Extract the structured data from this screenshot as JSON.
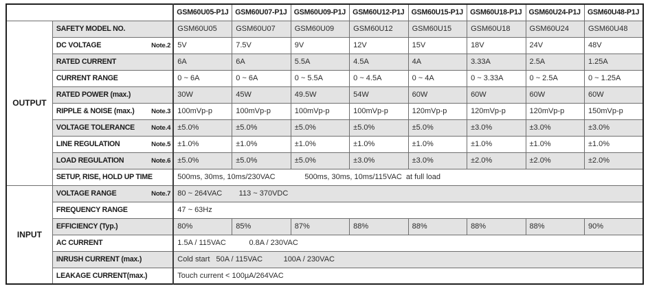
{
  "table": {
    "corner": "",
    "models": [
      "GSM60U05-P1J",
      "GSM60U07-P1J",
      "GSM60U09-P1J",
      "GSM60U12-P1J",
      "GSM60U15-P1J",
      "GSM60U18-P1J",
      "GSM60U24-P1J",
      "GSM60U48-P1J"
    ],
    "sections": [
      {
        "label": "OUTPUT",
        "rows": [
          {
            "label": "SAFETY MODEL NO.",
            "note": "",
            "values": [
              "GSM60U05",
              "GSM60U07",
              "GSM60U09",
              "GSM60U12",
              "GSM60U15",
              "GSM60U18",
              "GSM60U24",
              "GSM60U48"
            ]
          },
          {
            "label": "DC VOLTAGE",
            "note": "Note.2",
            "values": [
              "5V",
              "7.5V",
              "9V",
              "12V",
              "15V",
              "18V",
              "24V",
              "48V"
            ]
          },
          {
            "label": "RATED CURRENT",
            "note": "",
            "values": [
              "6A",
              "6A",
              "5.5A",
              "4.5A",
              "4A",
              "3.33A",
              "2.5A",
              "1.25A"
            ]
          },
          {
            "label": "CURRENT RANGE",
            "note": "",
            "values": [
              "0 ~ 6A",
              "0 ~ 6A",
              "0 ~ 5.5A",
              "0 ~ 4.5A",
              "0 ~ 4A",
              "0 ~ 3.33A",
              "0 ~ 2.5A",
              "0 ~ 1.25A"
            ]
          },
          {
            "label": "RATED POWER (max.)",
            "note": "",
            "values": [
              "30W",
              "45W",
              "49.5W",
              "54W",
              "60W",
              "60W",
              "60W",
              "60W"
            ]
          },
          {
            "label": "RIPPLE & NOISE (max.)",
            "note": "Note.3",
            "values": [
              "100mVp-p",
              "100mVp-p",
              "100mVp-p",
              "100mVp-p",
              "120mVp-p",
              "120mVp-p",
              "120mVp-p",
              "150mVp-p"
            ]
          },
          {
            "label": "VOLTAGE TOLERANCE",
            "note": "Note.4",
            "values": [
              "±5.0%",
              "±5.0%",
              "±5.0%",
              "±5.0%",
              "±5.0%",
              "±3.0%",
              "±3.0%",
              "±3.0%"
            ]
          },
          {
            "label": "LINE REGULATION",
            "note": "Note.5",
            "values": [
              "±1.0%",
              "±1.0%",
              "±1.0%",
              "±1.0%",
              "±1.0%",
              "±1.0%",
              "±1.0%",
              "±1.0%"
            ]
          },
          {
            "label": "LOAD REGULATION",
            "note": "Note.6",
            "values": [
              "±5.0%",
              "±5.0%",
              "±5.0%",
              "±3.0%",
              "±3.0%",
              "±2.0%",
              "±2.0%",
              "±2.0%"
            ]
          },
          {
            "label": "SETUP, RISE, HOLD UP TIME",
            "note": "",
            "span": "500ms, 30ms, 10ms/230VAC              500ms, 30ms, 10ms/115VAC  at full load"
          }
        ]
      },
      {
        "label": "INPUT",
        "rows": [
          {
            "label": "VOLTAGE RANGE",
            "note": "Note.7",
            "span": "80 ~ 264VAC        113 ~ 370VDC"
          },
          {
            "label": "FREQUENCY RANGE",
            "note": "",
            "span": "47 ~ 63Hz"
          },
          {
            "label": "EFFICIENCY (Typ.)",
            "note": "",
            "values": [
              "80%",
              "85%",
              "87%",
              "88%",
              "88%",
              "88%",
              "88%",
              "90%"
            ]
          },
          {
            "label": "AC CURRENT",
            "note": "",
            "span": "1.5A / 115VAC           0.8A / 230VAC"
          },
          {
            "label": "INRUSH CURRENT (max.)",
            "note": "",
            "span": "Cold start   50A / 115VAC          100A / 230VAC"
          },
          {
            "label": "LEAKAGE CURRENT(max.)",
            "note": "",
            "span": "Touch current < 100µA/264VAC"
          }
        ]
      }
    ],
    "colors": {
      "shaded_row": "#e3e3e3",
      "border_outer": "#1f1f1f",
      "border_inner": "#6e6e6e",
      "text": "#2b2b2b"
    }
  }
}
